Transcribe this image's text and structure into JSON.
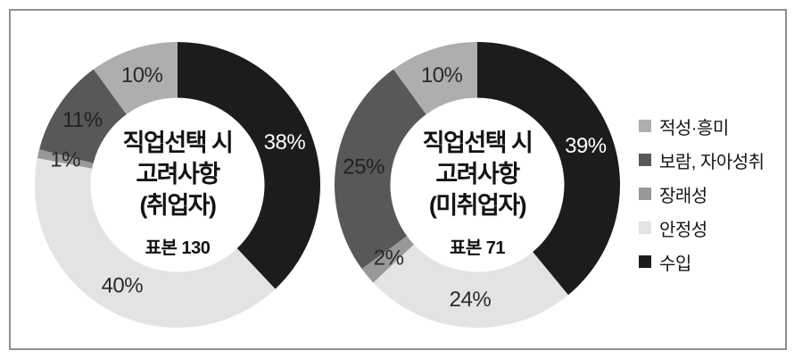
{
  "frame": {
    "border_color": "#8f8f92",
    "background": "#ffffff"
  },
  "legend": {
    "items": [
      {
        "label": "적성·흥미",
        "color": "#aeaeb1"
      },
      {
        "label": "보람, 자아성취",
        "color": "#58585a"
      },
      {
        "label": "장래성",
        "color": "#98989b"
      },
      {
        "label": "안정성",
        "color": "#e3e3e5"
      },
      {
        "label": "수입",
        "color": "#1c1c1e"
      }
    ]
  },
  "chart_data": [
    {
      "type": "pie",
      "variant": "donut",
      "title_line1": "직업선택 시",
      "title_line2": "고려사항",
      "title_line3": "(취업자)",
      "sample_label": "표본 130",
      "sample_n": 130,
      "start_angle_deg": 0,
      "direction": "clockwise",
      "segments": [
        {
          "label": "수입",
          "value": 38,
          "color": "#1c1c1e",
          "text_color": "#ffffff"
        },
        {
          "label": "안정성",
          "value": 40,
          "color": "#e3e3e5",
          "text_color": "#2a2a2c"
        },
        {
          "label": "장래성",
          "value": 1,
          "color": "#98989b",
          "text_color": "#2a2a2c"
        },
        {
          "label": "보람, 자아성취",
          "value": 11,
          "color": "#58585a",
          "text_color": "#222224"
        },
        {
          "label": "적성·흥미",
          "value": 10,
          "color": "#aeaeb1",
          "text_color": "#2a2a2c"
        }
      ]
    },
    {
      "type": "pie",
      "variant": "donut",
      "title_line1": "직업선택 시",
      "title_line2": "고려사항",
      "title_line3": "(미취업자)",
      "sample_label": "표본 71",
      "sample_n": 71,
      "start_angle_deg": 0,
      "direction": "clockwise",
      "segments": [
        {
          "label": "수입",
          "value": 39,
          "color": "#1c1c1e",
          "text_color": "#ffffff"
        },
        {
          "label": "안정성",
          "value": 24,
          "color": "#e3e3e5",
          "text_color": "#2a2a2c"
        },
        {
          "label": "장래성",
          "value": 2,
          "color": "#98989b",
          "text_color": "#2a2a2c"
        },
        {
          "label": "보람, 자아성취",
          "value": 25,
          "color": "#58585a",
          "text_color": "#222224"
        },
        {
          "label": "적성·흥미",
          "value": 10,
          "color": "#aeaeb1",
          "text_color": "#2a2a2c"
        }
      ]
    }
  ],
  "geometry": {
    "outer_radius": 160,
    "inner_radius": 97.5,
    "label_radius": 129
  }
}
